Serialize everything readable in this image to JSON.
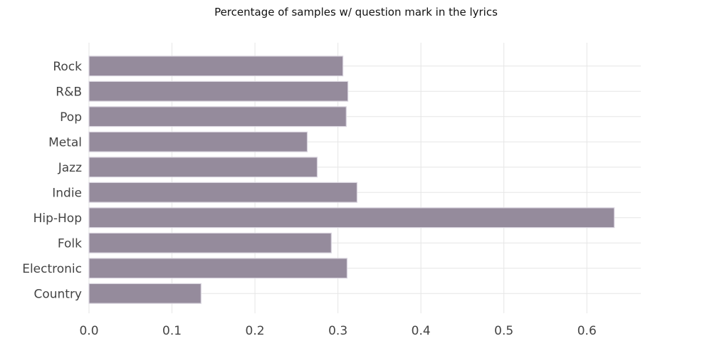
{
  "chart_data": {
    "type": "bar",
    "orientation": "horizontal",
    "title": "Percentage of samples w/ question mark in the lyrics",
    "xlabel": "",
    "ylabel": "",
    "categories": [
      "Rock",
      "R&B",
      "Pop",
      "Metal",
      "Jazz",
      "Indie",
      "Hip-Hop",
      "Folk",
      "Electronic",
      "Country"
    ],
    "values": [
      0.306,
      0.312,
      0.31,
      0.263,
      0.275,
      0.323,
      0.633,
      0.292,
      0.311,
      0.135
    ],
    "xlim": [
      0.0,
      0.665
    ],
    "xticks": [
      "0.0",
      "0.1",
      "0.2",
      "0.3",
      "0.4",
      "0.5",
      "0.6"
    ],
    "grid": true,
    "legend": "none",
    "colors": {
      "bar_fill": "#958b9c",
      "bar_edge": "#d6d1dc",
      "grid": "#e6e6e6",
      "text": "#444444"
    }
  }
}
